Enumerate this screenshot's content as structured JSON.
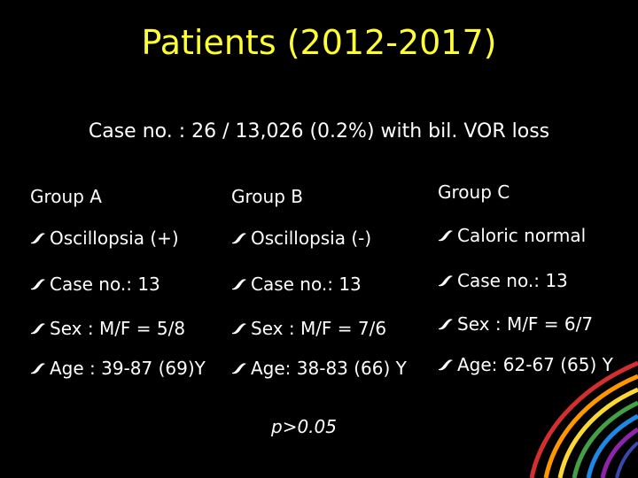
{
  "slide": {
    "title": "Patients (2012-2017)",
    "subtitle": "Case no. : 26 / 13,026 (0.2%) with bil. VOR loss",
    "groups": [
      {
        "heading": "Group A",
        "items": [
          "Oscillopsia (+)",
          "Case no.: 13",
          "Sex : M/F = 5/8",
          "Age : 39-87 (69)Y"
        ]
      },
      {
        "heading": "Group B",
        "items": [
          "Oscillopsia (-)",
          "Case no.: 13",
          "Sex : M/F = 7/6",
          "Age: 38-83 (66) Y"
        ]
      },
      {
        "heading": "Group C",
        "items": [
          "Caloric normal",
          "Case no.: 13",
          "Sex : M/F = 6/7",
          "Age: 62-67 (65) Y"
        ]
      }
    ],
    "p_value": "p>0.05"
  },
  "colors": {
    "title": "#ffff33",
    "text": "#ffffff",
    "background": "#000000",
    "bullet": "#ffffff"
  },
  "icons": {
    "bullet": "ribbon-bullet-icon",
    "decoration": "rainbow-swirl"
  }
}
